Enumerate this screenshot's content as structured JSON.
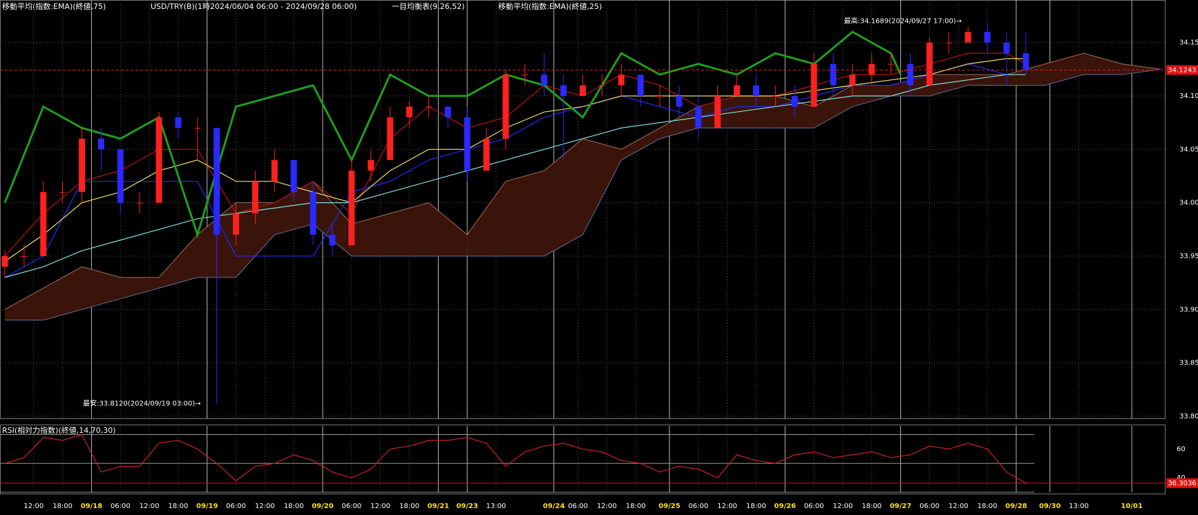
{
  "chart_data": {
    "type": "candlestick",
    "headers": [
      "移動平均(指数:EMA)(終値,75)",
      "USD/TRY(B)(1時2024/06/04 06:00 - 2024/09/28 06:00)",
      "一目均衡表(9,26,52)",
      "移動平均(指数:EMA)(終値,25)"
    ],
    "rsi_title": "RSI(相対力指数)(終値,14,70,30)",
    "xlim": [
      0,
      242
    ],
    "ylim": [
      33.798,
      34.186
    ],
    "yticks": [
      {
        "value": 33.8,
        "label": "33.80"
      },
      33.85,
      {
        "value": 33.9,
        "label": "33.90"
      },
      33.95,
      {
        "value": 34.0,
        "label": "34.00"
      },
      34.05,
      {
        "value": 34.1,
        "label": "34.10"
      },
      34.15
    ],
    "xticks": [
      {
        "value": 7,
        "label": "12:00"
      },
      {
        "value": 13,
        "label": "18:00"
      },
      {
        "value": 19,
        "label": "09/18"
      },
      {
        "value": 25,
        "label": "06:00"
      },
      {
        "value": 31,
        "label": "12:00"
      },
      {
        "value": 37,
        "label": "18:00"
      },
      {
        "value": 43,
        "label": "09/19"
      },
      {
        "value": 49,
        "label": "06:00"
      },
      {
        "value": 55,
        "label": "12:00"
      },
      {
        "value": 61,
        "label": "18:00"
      },
      {
        "value": 67,
        "label": "09/20"
      },
      {
        "value": 73,
        "label": "06:00"
      },
      {
        "value": 79,
        "label": "12:00"
      },
      {
        "value": 85,
        "label": "18:00"
      },
      {
        "value": 91,
        "label": "09/21"
      },
      {
        "value": 97,
        "label": "09/23"
      },
      {
        "value": 103,
        "label": "13:00"
      },
      {
        "value": 115,
        "label": "09/24"
      },
      {
        "value": 120,
        "label": "06:00"
      },
      {
        "value": 126,
        "label": "12:00"
      },
      {
        "value": 132,
        "label": "18:00"
      },
      {
        "value": 139,
        "label": "09/25"
      },
      {
        "value": 145,
        "label": "06:00"
      },
      {
        "value": 151,
        "label": "12:00"
      },
      {
        "value": 157,
        "label": "18:00"
      },
      {
        "value": 163,
        "label": "09/26"
      },
      {
        "value": 169,
        "label": "06:00"
      },
      {
        "value": 175,
        "label": "12:00"
      },
      {
        "value": 181,
        "label": "18:00"
      },
      {
        "value": 187,
        "label": "09/27"
      },
      {
        "value": 193,
        "label": "06:00"
      },
      {
        "value": 199,
        "label": "12:00"
      },
      {
        "value": 205,
        "label": "18:00"
      },
      {
        "value": 211,
        "label": "09/28"
      },
      {
        "value": 218,
        "label": "09/30"
      },
      {
        "value": 224,
        "label": "13:00"
      },
      {
        "value": 235,
        "label": "10/01"
      }
    ],
    "grid": true,
    "up_color": "#ff2020",
    "down_color": "#2a2aff",
    "candles": {
      "x": [
        1,
        5,
        9,
        13,
        17,
        21,
        25,
        29,
        33,
        37,
        41,
        45,
        49,
        53,
        57,
        61,
        65,
        69,
        73,
        77,
        81,
        85,
        89,
        93,
        97,
        101,
        105,
        109,
        113,
        117,
        121,
        125,
        129,
        133,
        137,
        141,
        145,
        149,
        153,
        157,
        161,
        165,
        169,
        173,
        177,
        181,
        185,
        189,
        193,
        197,
        201,
        205,
        209,
        213
      ],
      "open": [
        33.94,
        33.95,
        33.95,
        34.01,
        34.01,
        34.06,
        34.05,
        34.0,
        34.0,
        34.08,
        34.07,
        34.07,
        33.97,
        33.99,
        34.02,
        34.04,
        34.01,
        33.97,
        33.96,
        34.03,
        34.04,
        34.08,
        34.09,
        34.09,
        34.08,
        34.03,
        34.06,
        34.12,
        34.12,
        34.11,
        34.1,
        34.11,
        34.11,
        34.12,
        34.1,
        34.1,
        34.09,
        34.07,
        34.1,
        34.11,
        34.1,
        34.1,
        34.09,
        34.13,
        34.11,
        34.12,
        34.13,
        34.13,
        34.11,
        34.15,
        34.15,
        34.16,
        34.15,
        34.14
      ],
      "high": [
        33.955,
        33.96,
        34.02,
        34.02,
        34.07,
        34.07,
        34.05,
        34.01,
        34.085,
        34.085,
        34.08,
        34.07,
        34.0,
        34.03,
        34.05,
        34.04,
        34.02,
        33.98,
        34.04,
        34.05,
        34.09,
        34.095,
        34.1,
        34.09,
        34.09,
        34.07,
        34.125,
        34.13,
        34.14,
        34.12,
        34.12,
        34.12,
        34.13,
        34.12,
        34.11,
        34.11,
        34.1,
        34.11,
        34.12,
        34.12,
        34.11,
        34.11,
        34.14,
        34.14,
        34.13,
        34.14,
        34.14,
        34.14,
        34.155,
        34.16,
        34.165,
        34.1689,
        34.16,
        34.16
      ],
      "low": [
        33.93,
        33.94,
        33.95,
        34.0,
        34.0,
        34.03,
        33.99,
        33.99,
        34.0,
        34.06,
        34.04,
        33.812,
        33.96,
        33.98,
        34.01,
        34.0,
        33.96,
        33.95,
        33.96,
        34.02,
        34.04,
        34.07,
        34.08,
        34.07,
        34.02,
        34.03,
        34.05,
        34.11,
        34.1,
        34.04,
        34.1,
        34.1,
        34.1,
        34.09,
        34.09,
        34.08,
        34.06,
        34.07,
        34.1,
        34.09,
        34.09,
        34.08,
        34.09,
        34.1,
        34.1,
        34.11,
        34.12,
        34.1,
        34.11,
        34.14,
        34.15,
        34.14,
        34.11,
        34.12
      ],
      "close": [
        33.95,
        33.95,
        34.01,
        34.01,
        34.06,
        34.05,
        34.0,
        34.0,
        34.08,
        34.07,
        34.07,
        33.97,
        33.99,
        34.02,
        34.04,
        34.01,
        33.97,
        33.96,
        34.03,
        34.04,
        34.08,
        34.09,
        34.09,
        34.08,
        34.03,
        34.06,
        34.12,
        34.12,
        34.11,
        34.1,
        34.11,
        34.11,
        34.12,
        34.1,
        34.1,
        34.09,
        34.07,
        34.1,
        34.11,
        34.1,
        34.1,
        34.09,
        34.13,
        34.11,
        34.12,
        34.13,
        34.13,
        34.11,
        34.15,
        34.15,
        34.16,
        34.15,
        34.14,
        34.1243
      ]
    },
    "cloud": {
      "x": [
        1,
        9,
        17,
        25,
        33,
        41,
        49,
        57,
        65,
        73,
        81,
        89,
        97,
        105,
        113,
        121,
        129,
        137,
        145,
        153,
        161,
        169,
        177,
        185,
        193,
        201,
        209,
        217,
        225,
        233,
        241
      ],
      "span_a": [
        33.9,
        33.92,
        33.94,
        33.93,
        33.93,
        33.97,
        34.0,
        34.0,
        34.02,
        33.98,
        33.99,
        34.0,
        33.97,
        34.02,
        34.03,
        34.06,
        34.05,
        34.07,
        34.09,
        34.1,
        34.1,
        34.09,
        34.11,
        34.11,
        34.12,
        34.12,
        34.12,
        34.13,
        34.14,
        34.13,
        34.125
      ],
      "span_b": [
        33.89,
        33.89,
        33.9,
        33.91,
        33.92,
        33.93,
        33.93,
        33.97,
        33.98,
        33.95,
        33.95,
        33.95,
        33.95,
        33.95,
        33.95,
        33.97,
        34.04,
        34.06,
        34.07,
        34.07,
        34.07,
        34.07,
        34.09,
        34.1,
        34.1,
        34.11,
        34.11,
        34.11,
        34.12,
        34.12,
        34.125
      ],
      "fill_up": "#3a140a",
      "fill_down": "#1c1c50",
      "edge_a": "#a0705a",
      "edge_b": "#6a6aa0"
    },
    "lines": [
      {
        "color": "#2828ff",
        "width": 1.2,
        "x": [
          1,
          9,
          17,
          25,
          33,
          41,
          49,
          57,
          65,
          73,
          81,
          89,
          97,
          105,
          113,
          121,
          129,
          137,
          145,
          153,
          161,
          169,
          177,
          185,
          193,
          201,
          209,
          213
        ],
        "values": [
          33.93,
          33.95,
          34.02,
          34.02,
          34.02,
          34.02,
          33.95,
          33.95,
          33.95,
          34.01,
          34.02,
          34.04,
          34.05,
          34.06,
          34.08,
          34.09,
          34.1,
          34.09,
          34.08,
          34.09,
          34.09,
          34.1,
          34.11,
          34.11,
          34.12,
          34.13,
          34.12,
          34.12
        ]
      },
      {
        "color": "#c01010",
        "width": 1.2,
        "x": [
          1,
          9,
          17,
          25,
          33,
          41,
          49,
          57,
          65,
          73,
          81,
          89,
          97,
          105,
          113,
          121,
          129,
          137,
          145,
          153,
          161,
          169,
          177,
          185,
          193,
          201,
          209,
          213
        ],
        "values": [
          33.95,
          33.99,
          34.02,
          34.03,
          34.05,
          34.05,
          33.99,
          34.0,
          34.02,
          33.99,
          34.06,
          34.09,
          34.07,
          34.08,
          34.11,
          34.1,
          34.12,
          34.11,
          34.09,
          34.1,
          34.1,
          34.11,
          34.12,
          34.12,
          34.13,
          34.14,
          34.14,
          34.13
        ]
      },
      {
        "color": "#80e0e0",
        "width": 1.2,
        "x": [
          1,
          9,
          17,
          25,
          33,
          41,
          49,
          57,
          65,
          73,
          81,
          89,
          97,
          105,
          113,
          121,
          129,
          137,
          145,
          153,
          161,
          169,
          177,
          185,
          193,
          201,
          209,
          213
        ],
        "values": [
          33.93,
          33.94,
          33.955,
          33.965,
          33.975,
          33.985,
          33.99,
          33.995,
          34.0,
          34.0,
          34.01,
          34.02,
          34.03,
          34.04,
          34.05,
          34.06,
          34.07,
          34.075,
          34.08,
          34.085,
          34.09,
          34.095,
          34.1,
          34.1,
          34.11,
          34.115,
          34.12,
          34.12
        ]
      },
      {
        "color": "#f0e060",
        "width": 1.2,
        "x": [
          1,
          9,
          17,
          25,
          33,
          41,
          49,
          57,
          65,
          73,
          81,
          89,
          97,
          105,
          113,
          121,
          129,
          137,
          145,
          153,
          161,
          169,
          177,
          185,
          193,
          201,
          209,
          213
        ],
        "values": [
          33.945,
          33.97,
          34.0,
          34.01,
          34.03,
          34.04,
          34.02,
          34.02,
          34.01,
          34.0,
          34.03,
          34.05,
          34.05,
          34.07,
          34.085,
          34.09,
          34.1,
          34.1,
          34.1,
          34.1,
          34.1,
          34.105,
          34.11,
          34.115,
          34.12,
          34.13,
          34.135,
          34.135
        ]
      },
      {
        "color": "#1e9e1e",
        "width": 3,
        "x": [
          1,
          9,
          17,
          25,
          33,
          41,
          49,
          57,
          65,
          73,
          81,
          89,
          97,
          105,
          113,
          121,
          129,
          137,
          145,
          153,
          161,
          169,
          177,
          185,
          187
        ],
        "values": [
          34.0,
          34.09,
          34.07,
          34.06,
          34.08,
          33.97,
          34.09,
          34.1,
          34.11,
          34.04,
          34.12,
          34.1,
          34.1,
          34.12,
          34.11,
          34.08,
          34.14,
          34.12,
          34.13,
          34.12,
          34.14,
          34.13,
          34.16,
          34.14,
          34.12
        ]
      }
    ],
    "last_price": 34.1243,
    "annotations": [
      {
        "text": "最高:34.1689(2024/09/27 17:00)→",
        "x": 204,
        "y": 34.1689
      },
      {
        "text": "最安:33.8120(2024/09/19 03:00)→",
        "x": 46,
        "y": 33.812
      }
    ],
    "rsi": {
      "color": "#d02020",
      "ylim": [
        30,
        76
      ],
      "yticks": [
        60,
        40
      ],
      "levels": [
        70,
        50,
        30
      ],
      "values": [
        50,
        54,
        68,
        66,
        70,
        44,
        48,
        48,
        64,
        66,
        60,
        50,
        38,
        48,
        50,
        56,
        52,
        44,
        40,
        46,
        60,
        62,
        66,
        66,
        68,
        64,
        48,
        58,
        62,
        64,
        60,
        58,
        52,
        50,
        44,
        48,
        46,
        40,
        56,
        52,
        50,
        56,
        58,
        54,
        56,
        58,
        54,
        56,
        62,
        60,
        64,
        60,
        44,
        36.3036
      ]
    }
  }
}
